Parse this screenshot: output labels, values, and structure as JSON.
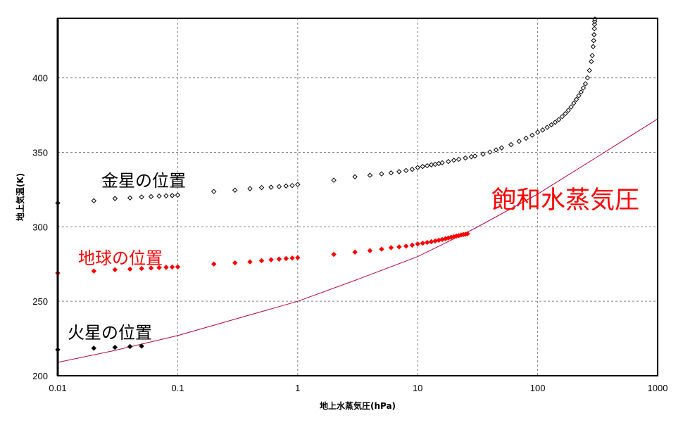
{
  "chart_data": {
    "type": "scatter",
    "title": "",
    "xlabel": "地上水蒸気圧(hPa)",
    "ylabel": "地上気温(K)",
    "xscale": "log",
    "xlim": [
      0.01,
      1000
    ],
    "ylim": [
      200,
      440
    ],
    "grid": true,
    "x_ticks": [
      "0.01",
      "0.1",
      "1",
      "10",
      "100",
      "1000"
    ],
    "y_ticks": [
      "200",
      "250",
      "300",
      "350",
      "400"
    ],
    "annotations": {
      "venus": "金星の位置",
      "earth": "地球の位置",
      "mars": "火星の位置",
      "saturation": "飽和水蒸気圧"
    },
    "colors": {
      "venus": "#000000",
      "earth": "#ff0000",
      "mars": "#000000",
      "saturation": "#c00040",
      "earth_label": "#ff0000",
      "saturation_label": "#ff0000"
    },
    "series": [
      {
        "name": "金星の位置",
        "marker": "open-diamond",
        "points": [
          [
            0.01,
            316
          ],
          [
            0.02,
            317.5
          ],
          [
            0.03,
            319
          ],
          [
            0.04,
            319.4
          ],
          [
            0.05,
            320
          ],
          [
            0.06,
            320.3
          ],
          [
            0.07,
            320.6
          ],
          [
            0.08,
            320.8
          ],
          [
            0.09,
            321
          ],
          [
            0.1,
            321.3
          ],
          [
            0.2,
            323.7
          ],
          [
            0.3,
            324.6
          ],
          [
            0.4,
            325.6
          ],
          [
            0.5,
            326.3
          ],
          [
            0.6,
            326.6
          ],
          [
            0.7,
            327
          ],
          [
            0.8,
            327.4
          ],
          [
            0.9,
            327.7
          ],
          [
            1,
            328.4
          ],
          [
            2,
            331.3
          ],
          [
            3,
            333.6
          ],
          [
            4,
            334.6
          ],
          [
            5,
            335.5
          ],
          [
            6,
            336.2
          ],
          [
            7,
            337
          ],
          [
            8,
            337.8
          ],
          [
            9,
            338.6
          ],
          [
            10,
            339.8
          ],
          [
            11,
            340.5
          ],
          [
            12,
            341
          ],
          [
            13,
            341.6
          ],
          [
            14,
            342
          ],
          [
            15,
            342.5
          ],
          [
            16,
            343
          ],
          [
            18,
            343.8
          ],
          [
            20,
            344.7
          ],
          [
            22,
            345.3
          ],
          [
            25,
            346.2
          ],
          [
            28,
            347
          ],
          [
            30,
            347.5
          ],
          [
            35,
            348.8
          ],
          [
            40,
            350.2
          ],
          [
            45,
            351.6
          ],
          [
            50,
            353
          ],
          [
            60,
            355.2
          ],
          [
            70,
            357.4
          ],
          [
            80,
            359.5
          ],
          [
            90,
            361.5
          ],
          [
            100,
            363.5
          ],
          [
            110,
            365
          ],
          [
            120,
            366.8
          ],
          [
            130,
            368.5
          ],
          [
            140,
            370.2
          ],
          [
            150,
            372
          ],
          [
            160,
            374
          ],
          [
            170,
            376
          ],
          [
            180,
            378.2
          ],
          [
            190,
            380.5
          ],
          [
            200,
            383
          ],
          [
            210,
            385.5
          ],
          [
            220,
            388
          ],
          [
            230,
            390.5
          ],
          [
            240,
            393.2
          ],
          [
            250,
            396
          ],
          [
            260,
            400
          ],
          [
            270,
            405
          ],
          [
            280,
            411
          ],
          [
            285,
            415
          ],
          [
            290,
            421
          ],
          [
            293,
            425
          ],
          [
            295,
            429
          ],
          [
            297,
            433
          ],
          [
            298,
            436
          ],
          [
            299,
            438
          ],
          [
            300,
            439.5
          ]
        ]
      },
      {
        "name": "地球の位置",
        "marker": "filled-diamond",
        "points": [
          [
            0.01,
            269
          ],
          [
            0.02,
            270.3
          ],
          [
            0.03,
            271.2
          ],
          [
            0.04,
            271.6
          ],
          [
            0.05,
            272
          ],
          [
            0.06,
            272.3
          ],
          [
            0.07,
            272.6
          ],
          [
            0.08,
            272.8
          ],
          [
            0.09,
            273
          ],
          [
            0.1,
            273.1
          ],
          [
            0.2,
            275
          ],
          [
            0.3,
            275.8
          ],
          [
            0.4,
            276.5
          ],
          [
            0.5,
            277.2
          ],
          [
            0.6,
            277.9
          ],
          [
            0.7,
            278.3
          ],
          [
            0.8,
            278.7
          ],
          [
            0.9,
            279
          ],
          [
            1,
            279.3
          ],
          [
            2,
            281.5
          ],
          [
            3,
            283
          ],
          [
            4,
            284
          ],
          [
            5,
            285
          ],
          [
            6,
            286
          ],
          [
            7,
            286.5
          ],
          [
            8,
            287
          ],
          [
            9,
            287.7
          ],
          [
            10,
            288.5
          ],
          [
            11,
            289
          ],
          [
            12,
            289.5
          ],
          [
            13,
            290
          ],
          [
            14,
            290.5
          ],
          [
            15,
            291
          ],
          [
            16,
            291.5
          ],
          [
            17,
            292
          ],
          [
            18,
            292.5
          ],
          [
            19,
            293
          ],
          [
            20,
            293.4
          ],
          [
            21,
            293.8
          ],
          [
            22,
            294.1
          ],
          [
            23,
            294.5
          ],
          [
            24,
            294.8
          ],
          [
            25,
            295
          ],
          [
            26,
            295.3
          ]
        ]
      },
      {
        "name": "火星の位置",
        "marker": "filled-diamond",
        "points": [
          [
            0.01,
            217.5
          ],
          [
            0.02,
            218.5
          ],
          [
            0.03,
            219.1
          ],
          [
            0.04,
            219.6
          ],
          [
            0.05,
            219.9
          ]
        ]
      },
      {
        "name": "飽和水蒸気圧",
        "marker": "line",
        "points": [
          [
            0.01,
            209
          ],
          [
            0.03,
            217
          ],
          [
            0.1,
            227
          ],
          [
            0.3,
            238
          ],
          [
            1,
            250
          ],
          [
            3,
            264
          ],
          [
            10,
            280
          ],
          [
            30,
            299
          ],
          [
            100,
            322
          ],
          [
            300,
            346
          ],
          [
            1000,
            372.5
          ]
        ]
      }
    ]
  }
}
